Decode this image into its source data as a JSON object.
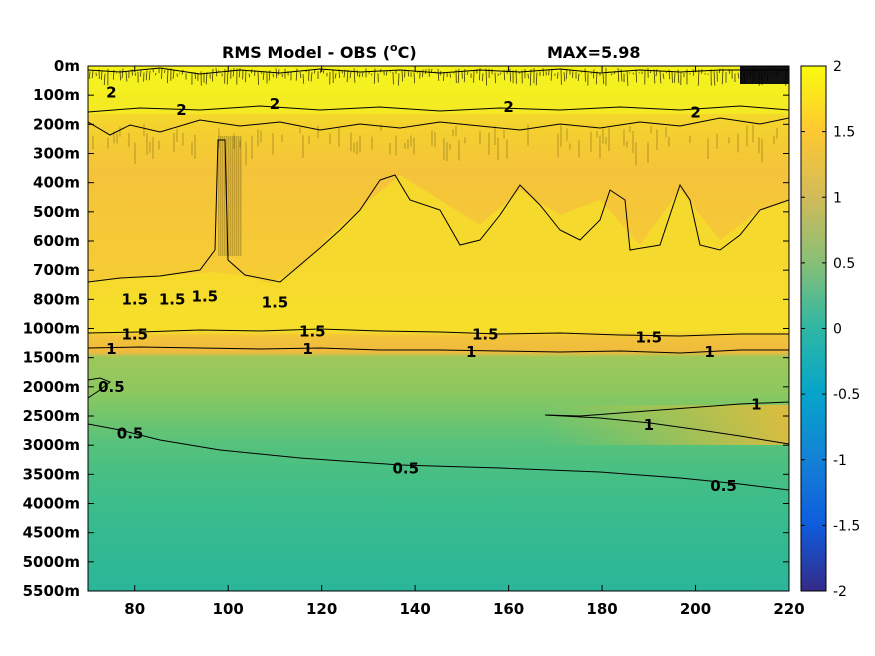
{
  "chart_data": {
    "type": "heatmap",
    "title": "RMS Model - OBS (°C)",
    "title_main": "RMS Model - OBS (",
    "title_sup": "o",
    "title_end": "C)",
    "max_label": "MAX=5.98",
    "x_ticks": [
      80,
      100,
      120,
      140,
      160,
      180,
      200,
      220
    ],
    "x_range": [
      70,
      220
    ],
    "y_ticks": [
      "0m",
      "100m",
      "200m",
      "300m",
      "400m",
      "500m",
      "600m",
      "700m",
      "800m",
      "1000m",
      "1500m",
      "2000m",
      "2500m",
      "3000m",
      "3500m",
      "4000m",
      "4500m",
      "5000m",
      "5500m"
    ],
    "colorbar": {
      "range": [
        -2,
        2
      ],
      "ticks": [
        "2",
        "1.5",
        "1",
        "0.5",
        "0",
        "-0.5",
        "-1",
        "-1.5",
        "-2"
      ],
      "colormap": "parula"
    },
    "depth_bands": [
      {
        "from": 0,
        "to": 2,
        "value": 1.9
      },
      {
        "from": 2,
        "to": 8,
        "value": 1.35
      },
      {
        "from": 8,
        "to": 9.3,
        "value": 1.75
      },
      {
        "from": 9.3,
        "to": 10,
        "value": 1.3
      },
      {
        "from": 10,
        "to": 13,
        "value": 0.9
      },
      {
        "from": 13,
        "to": 18,
        "value": 0.45
      }
    ],
    "contours": [
      {
        "level": "2",
        "labels": [
          [
            75,
            0.9
          ],
          [
            90,
            1.5
          ],
          [
            110,
            1.3
          ],
          [
            160,
            1.4
          ],
          [
            200,
            1.6
          ]
        ]
      },
      {
        "level": "1.5",
        "labels": [
          [
            80,
            8.0
          ],
          [
            88,
            8.0
          ],
          [
            95,
            7.9
          ],
          [
            110,
            8.1
          ],
          [
            80,
            9.2
          ],
          [
            118,
            9.1
          ],
          [
            155,
            9.2
          ],
          [
            190,
            9.3
          ]
        ]
      },
      {
        "level": "1",
        "labels": [
          [
            75,
            9.7
          ],
          [
            117,
            9.7
          ],
          [
            152,
            9.8
          ],
          [
            203,
            9.8
          ],
          [
            190,
            12.3
          ],
          [
            213,
            11.6
          ]
        ]
      },
      {
        "level": "0.5",
        "labels": [
          [
            75,
            11.0
          ],
          [
            79,
            12.6
          ],
          [
            138,
            13.8
          ],
          [
            206,
            14.4
          ]
        ]
      }
    ]
  }
}
